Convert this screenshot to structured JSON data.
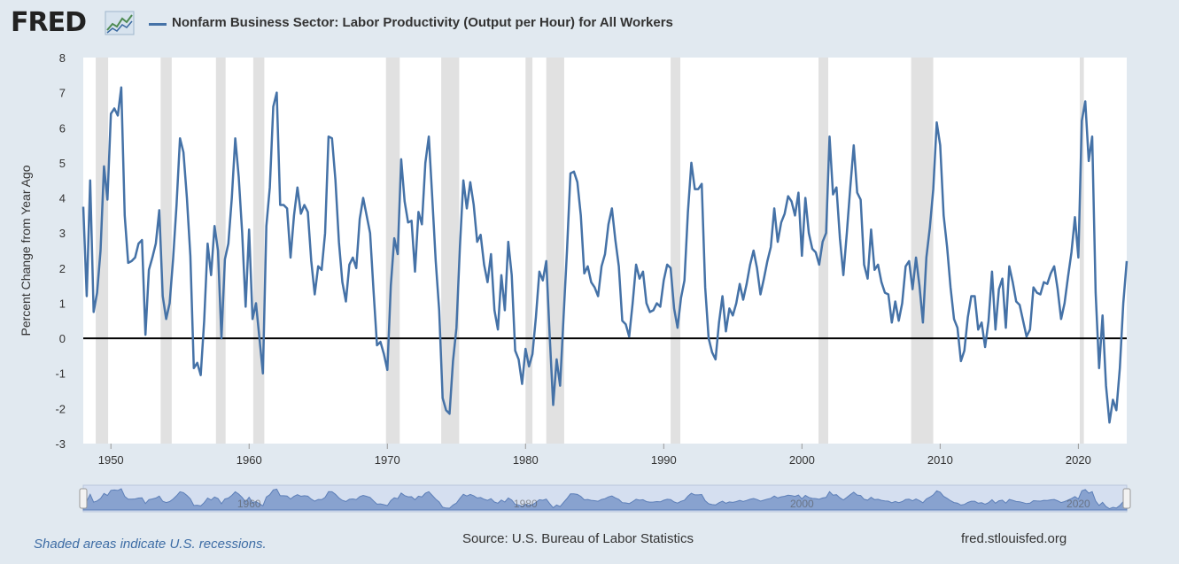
{
  "header": {
    "logo_text": "FRED",
    "logo_icon": "fred-chart-icon",
    "series_title": "Nonfarm Business Sector: Labor Productivity (Output per Hour) for All Workers"
  },
  "footer": {
    "recession_note": "Shaded areas indicate U.S. recessions.",
    "source": "Source: U.S. Bureau of Labor Statistics",
    "site": "fred.stlouisfed.org"
  },
  "colors": {
    "background": "#e1e9f0",
    "plot_background": "#ffffff",
    "series": "#4572a7",
    "recession": "#e1e1e1",
    "zero_line": "#000000",
    "navigator_fill": "#7a98c9"
  },
  "chart_data": {
    "type": "line",
    "title": "Nonfarm Business Sector: Labor Productivity (Output per Hour) for All Workers",
    "ylabel": "Percent Change from Year Ago",
    "xlabel": "",
    "xlim": [
      1948.0,
      2023.5
    ],
    "ylim": [
      -3,
      8
    ],
    "yticks": [
      -3,
      -2,
      -1,
      0,
      1,
      2,
      3,
      4,
      5,
      6,
      7,
      8
    ],
    "xticks": [
      1950,
      1960,
      1970,
      1980,
      1990,
      2000,
      2010,
      2020
    ],
    "navigator_labels": [
      "1960",
      "1980",
      "2000",
      "2020"
    ],
    "grid": false,
    "zero_line": true,
    "recessions": [
      [
        1948.9,
        1949.8
      ],
      [
        1953.6,
        1954.4
      ],
      [
        1957.6,
        1958.3
      ],
      [
        1960.3,
        1961.1
      ],
      [
        1969.9,
        1970.9
      ],
      [
        1973.9,
        1975.2
      ],
      [
        1980.0,
        1980.5
      ],
      [
        1981.5,
        1982.8
      ],
      [
        1990.5,
        1991.2
      ],
      [
        2001.2,
        2001.9
      ],
      [
        2007.9,
        2009.5
      ],
      [
        2020.1,
        2020.4
      ]
    ],
    "series": [
      {
        "name": "Nonfarm Business Sector: Labor Productivity (Output per Hour) for All Workers",
        "x": [
          1948.0,
          1948.25,
          1948.5,
          1948.75,
          1949.0,
          1949.25,
          1949.5,
          1949.75,
          1950.0,
          1950.25,
          1950.5,
          1950.75,
          1951.0,
          1951.25,
          1951.5,
          1951.75,
          1952.0,
          1952.25,
          1952.5,
          1952.75,
          1953.0,
          1953.25,
          1953.5,
          1953.75,
          1954.0,
          1954.25,
          1954.5,
          1954.75,
          1955.0,
          1955.25,
          1955.5,
          1955.75,
          1956.0,
          1956.25,
          1956.5,
          1956.75,
          1957.0,
          1957.25,
          1957.5,
          1957.75,
          1958.0,
          1958.25,
          1958.5,
          1958.75,
          1959.0,
          1959.25,
          1959.5,
          1959.75,
          1960.0,
          1960.25,
          1960.5,
          1960.75,
          1961.0,
          1961.25,
          1961.5,
          1961.75,
          1962.0,
          1962.25,
          1962.5,
          1962.75,
          1963.0,
          1963.25,
          1963.5,
          1963.75,
          1964.0,
          1964.25,
          1964.5,
          1964.75,
          1965.0,
          1965.25,
          1965.5,
          1965.75,
          1966.0,
          1966.25,
          1966.5,
          1966.75,
          1967.0,
          1967.25,
          1967.5,
          1967.75,
          1968.0,
          1968.25,
          1968.5,
          1968.75,
          1969.0,
          1969.25,
          1969.5,
          1969.75,
          1970.0,
          1970.25,
          1970.5,
          1970.75,
          1971.0,
          1971.25,
          1971.5,
          1971.75,
          1972.0,
          1972.25,
          1972.5,
          1972.75,
          1973.0,
          1973.25,
          1973.5,
          1973.75,
          1974.0,
          1974.25,
          1974.5,
          1974.75,
          1975.0,
          1975.25,
          1975.5,
          1975.75,
          1976.0,
          1976.25,
          1976.5,
          1976.75,
          1977.0,
          1977.25,
          1977.5,
          1977.75,
          1978.0,
          1978.25,
          1978.5,
          1978.75,
          1979.0,
          1979.25,
          1979.5,
          1979.75,
          1980.0,
          1980.25,
          1980.5,
          1980.75,
          1981.0,
          1981.25,
          1981.5,
          1981.75,
          1982.0,
          1982.25,
          1982.5,
          1982.75,
          1983.0,
          1983.25,
          1983.5,
          1983.75,
          1984.0,
          1984.25,
          1984.5,
          1984.75,
          1985.0,
          1985.25,
          1985.5,
          1985.75,
          1986.0,
          1986.25,
          1986.5,
          1986.75,
          1987.0,
          1987.25,
          1987.5,
          1987.75,
          1988.0,
          1988.25,
          1988.5,
          1988.75,
          1989.0,
          1989.25,
          1989.5,
          1989.75,
          1990.0,
          1990.25,
          1990.5,
          1990.75,
          1991.0,
          1991.25,
          1991.5,
          1991.75,
          1992.0,
          1992.25,
          1992.5,
          1992.75,
          1993.0,
          1993.25,
          1993.5,
          1993.75,
          1994.0,
          1994.25,
          1994.5,
          1994.75,
          1995.0,
          1995.25,
          1995.5,
          1995.75,
          1996.0,
          1996.25,
          1996.5,
          1996.75,
          1997.0,
          1997.25,
          1997.5,
          1997.75,
          1998.0,
          1998.25,
          1998.5,
          1998.75,
          1999.0,
          1999.25,
          1999.5,
          1999.75,
          2000.0,
          2000.25,
          2000.5,
          2000.75,
          2001.0,
          2001.25,
          2001.5,
          2001.75,
          2002.0,
          2002.25,
          2002.5,
          2002.75,
          2003.0,
          2003.25,
          2003.5,
          2003.75,
          2004.0,
          2004.25,
          2004.5,
          2004.75,
          2005.0,
          2005.25,
          2005.5,
          2005.75,
          2006.0,
          2006.25,
          2006.5,
          2006.75,
          2007.0,
          2007.25,
          2007.5,
          2007.75,
          2008.0,
          2008.25,
          2008.5,
          2008.75,
          2009.0,
          2009.25,
          2009.5,
          2009.75,
          2010.0,
          2010.25,
          2010.5,
          2010.75,
          2011.0,
          2011.25,
          2011.5,
          2011.75,
          2012.0,
          2012.25,
          2012.5,
          2012.75,
          2013.0,
          2013.25,
          2013.5,
          2013.75,
          2014.0,
          2014.25,
          2014.5,
          2014.75,
          2015.0,
          2015.25,
          2015.5,
          2015.75,
          2016.0,
          2016.25,
          2016.5,
          2016.75,
          2017.0,
          2017.25,
          2017.5,
          2017.75,
          2018.0,
          2018.25,
          2018.5,
          2018.75,
          2019.0,
          2019.25,
          2019.5,
          2019.75,
          2020.0,
          2020.25,
          2020.5,
          2020.75,
          2021.0,
          2021.25,
          2021.5,
          2021.75,
          2022.0,
          2022.25,
          2022.5,
          2022.75,
          2023.0,
          2023.25,
          2023.5
        ],
        "y": [
          3.75,
          1.2,
          4.5,
          0.75,
          1.3,
          2.5,
          4.9,
          3.95,
          6.4,
          6.55,
          6.35,
          7.15,
          3.5,
          2.15,
          2.2,
          2.3,
          2.7,
          2.8,
          0.1,
          1.95,
          2.3,
          2.7,
          3.65,
          1.2,
          0.55,
          1.0,
          2.25,
          3.8,
          5.7,
          5.3,
          4.0,
          2.35,
          -0.85,
          -0.7,
          -1.05,
          0.5,
          2.7,
          1.8,
          3.2,
          2.5,
          0.0,
          2.25,
          2.7,
          4.0,
          5.7,
          4.6,
          3.0,
          0.9,
          3.1,
          0.55,
          1.0,
          0.0,
          -1.0,
          3.2,
          4.3,
          6.6,
          7.0,
          3.8,
          3.8,
          3.7,
          2.3,
          3.5,
          4.3,
          3.55,
          3.8,
          3.6,
          2.2,
          1.25,
          2.05,
          1.95,
          3.0,
          5.75,
          5.7,
          4.5,
          2.75,
          1.6,
          1.05,
          2.1,
          2.3,
          2.0,
          3.4,
          4.0,
          3.5,
          3.0,
          1.35,
          -0.2,
          -0.1,
          -0.45,
          -0.9,
          1.5,
          2.85,
          2.4,
          5.1,
          3.9,
          3.3,
          3.35,
          1.9,
          3.6,
          3.25,
          5.0,
          5.75,
          4.0,
          2.2,
          0.8,
          -1.7,
          -2.05,
          -2.15,
          -0.65,
          0.3,
          2.6,
          4.5,
          3.7,
          4.45,
          3.8,
          2.75,
          2.95,
          2.1,
          1.6,
          2.4,
          0.8,
          0.25,
          1.8,
          0.8,
          2.75,
          1.8,
          -0.35,
          -0.6,
          -1.3,
          -0.3,
          -0.8,
          -0.45,
          0.6,
          1.9,
          1.65,
          2.2,
          0.05,
          -1.9,
          -0.6,
          -1.35,
          0.6,
          2.5,
          4.7,
          4.75,
          4.45,
          3.5,
          1.85,
          2.05,
          1.6,
          1.45,
          1.2,
          2.05,
          2.4,
          3.25,
          3.7,
          2.8,
          2.05,
          0.5,
          0.4,
          0.05,
          1.0,
          2.1,
          1.7,
          1.9,
          1.0,
          0.75,
          0.8,
          1.0,
          0.9,
          1.65,
          2.1,
          2.0,
          0.85,
          0.3,
          1.15,
          1.65,
          3.6,
          5.0,
          4.25,
          4.25,
          4.4,
          1.45,
          0.0,
          -0.4,
          -0.6,
          0.45,
          1.2,
          0.2,
          0.85,
          0.65,
          1.0,
          1.55,
          1.1,
          1.55,
          2.1,
          2.5,
          2.0,
          1.25,
          1.7,
          2.2,
          2.6,
          3.7,
          2.75,
          3.3,
          3.55,
          4.05,
          3.9,
          3.5,
          4.15,
          2.35,
          4.0,
          3.0,
          2.55,
          2.45,
          2.1,
          2.75,
          3.0,
          5.75,
          4.1,
          4.3,
          2.85,
          1.8,
          3.0,
          4.3,
          5.5,
          4.15,
          3.95,
          2.1,
          1.7,
          3.1,
          1.95,
          2.1,
          1.6,
          1.3,
          1.25,
          0.45,
          1.05,
          0.5,
          1.0,
          2.05,
          2.2,
          1.4,
          2.3,
          1.5,
          0.45,
          2.3,
          3.15,
          4.25,
          6.15,
          5.5,
          3.5,
          2.6,
          1.45,
          0.55,
          0.3,
          -0.65,
          -0.35,
          0.6,
          1.2,
          1.2,
          0.25,
          0.45,
          -0.25,
          0.5,
          1.9,
          0.25,
          1.4,
          1.7,
          0.3,
          2.05,
          1.6,
          1.05,
          0.95,
          0.5,
          0.05,
          0.25,
          1.45,
          1.3,
          1.25,
          1.6,
          1.55,
          1.85,
          2.05,
          1.4,
          0.55,
          1.0,
          1.75,
          2.45,
          3.45,
          2.3,
          6.2,
          6.75,
          5.05,
          5.75,
          1.3,
          -0.85,
          0.65,
          -1.35,
          -2.4,
          -1.75,
          -2.05,
          -0.85,
          1.0,
          2.2
        ]
      }
    ]
  }
}
